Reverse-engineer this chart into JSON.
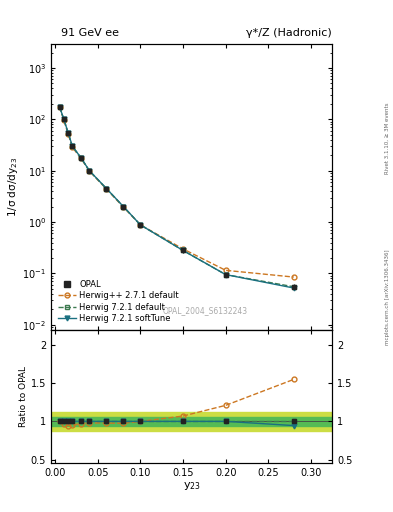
{
  "title_left": "91 GeV ee",
  "title_right": "γ*/Z (Hadronic)",
  "ylabel_main": "1/σ dσ/dy$_{23}$",
  "ylabel_ratio": "Ratio to OPAL",
  "xlabel": "y$_{23}$",
  "watermark": "OPAL_2004_S6132243",
  "right_label_top": "Rivet 3.1.10, ≥ 3M events",
  "right_label_bot": "mcplots.cern.ch [arXiv:1306.3436]",
  "opal_x": [
    0.005,
    0.01,
    0.015,
    0.02,
    0.03,
    0.04,
    0.06,
    0.08,
    0.1,
    0.15,
    0.2,
    0.28
  ],
  "opal_y": [
    175.0,
    100.0,
    55.0,
    30.0,
    18.0,
    10.0,
    4.5,
    2.0,
    0.88,
    0.28,
    0.095,
    0.055
  ],
  "opal_yerr": [
    15.0,
    8.0,
    4.5,
    2.5,
    1.5,
    0.9,
    0.4,
    0.18,
    0.08,
    0.025,
    0.009,
    0.006
  ],
  "hpp_x": [
    0.005,
    0.01,
    0.015,
    0.02,
    0.03,
    0.04,
    0.06,
    0.08,
    0.1,
    0.15,
    0.2,
    0.28
  ],
  "hpp_y": [
    175.0,
    96.0,
    52.0,
    28.5,
    17.5,
    9.8,
    4.4,
    1.95,
    0.88,
    0.3,
    0.115,
    0.085
  ],
  "hpp_color": "#cc7722",
  "hpp_label": "Herwig++ 2.7.1 default",
  "hw721d_x": [
    0.005,
    0.01,
    0.015,
    0.02,
    0.03,
    0.04,
    0.06,
    0.08,
    0.1,
    0.15,
    0.2,
    0.28
  ],
  "hw721d_y": [
    175.0,
    100.0,
    55.0,
    30.0,
    18.0,
    10.0,
    4.5,
    2.0,
    0.88,
    0.28,
    0.095,
    0.055
  ],
  "hw721d_color": "#3d7a50",
  "hw721d_label": "Herwig 7.2.1 default",
  "hw721s_x": [
    0.005,
    0.01,
    0.015,
    0.02,
    0.03,
    0.04,
    0.06,
    0.08,
    0.1,
    0.15,
    0.2,
    0.28
  ],
  "hw721s_y": [
    175.0,
    100.0,
    55.0,
    30.0,
    18.0,
    10.0,
    4.5,
    2.0,
    0.88,
    0.28,
    0.095,
    0.052
  ],
  "hw721s_color": "#1a7080",
  "hw721s_label": "Herwig 7.2.1 softTune",
  "ratio_hpp": [
    1.0,
    0.96,
    0.945,
    0.95,
    0.972,
    0.98,
    0.978,
    0.975,
    1.0,
    1.07,
    1.21,
    1.55
  ],
  "ratio_hw721d": [
    1.0,
    1.0,
    1.0,
    1.0,
    1.0,
    1.0,
    1.0,
    1.0,
    1.0,
    1.0,
    1.0,
    1.0
  ],
  "ratio_hw721s": [
    1.0,
    1.0,
    1.0,
    1.0,
    1.0,
    1.0,
    1.0,
    1.0,
    1.0,
    1.0,
    1.0,
    0.945
  ],
  "bg_color": "#ffffff",
  "opal_color": "#222222",
  "band_inner_color": "#55bb55",
  "band_outer_color": "#ccdd44",
  "ylim_main": [
    0.008,
    3000.0
  ],
  "ylim_ratio": [
    0.45,
    2.2
  ],
  "xlim": [
    -0.005,
    0.325
  ]
}
